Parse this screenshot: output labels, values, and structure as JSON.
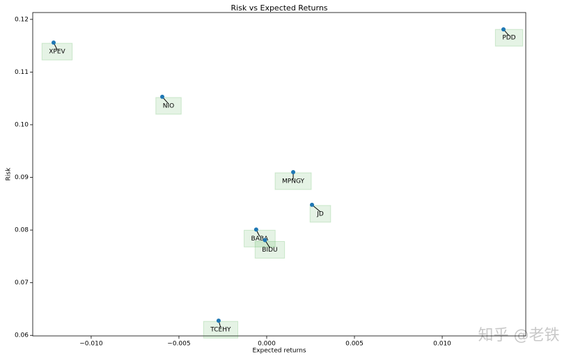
{
  "chart_data": {
    "type": "scatter",
    "title": "Risk vs Expected Returns",
    "x_label": "Expected returns",
    "y_label": "Risk",
    "labels": [
      "XPEV",
      "NIO",
      "PDD",
      "MPNGY",
      "JD",
      "BABA",
      "BIDU",
      "TCEHY"
    ],
    "x": [
      -0.01214,
      -0.00595,
      0.01349,
      0.00151,
      0.00258,
      -0.0006,
      -0.0001,
      -0.00274
    ],
    "values": [
      0.1156,
      0.1053,
      0.1181,
      0.091,
      0.0848,
      0.0801,
      0.0781,
      0.0628
    ],
    "color": "#1f77b4",
    "xlim": [
      -0.01333,
      0.01476
    ],
    "ylim": [
      0.0599,
      0.1213
    ],
    "xticks": [
      {
        "value": -0.01,
        "label": "−0.010"
      },
      {
        "value": -0.005,
        "label": "−0.005"
      },
      {
        "value": 0,
        "label": "0.000"
      },
      {
        "value": 0.005,
        "label": "0.005"
      },
      {
        "value": 0.01,
        "label": "0.010"
      }
    ],
    "yticks": [
      {
        "value": 0.06,
        "label": "0.06"
      },
      {
        "value": 0.07,
        "label": "0.07"
      },
      {
        "value": 0.08,
        "label": "0.08"
      },
      {
        "value": 0.09,
        "label": "0.09"
      },
      {
        "value": 0.1,
        "label": "0.10"
      },
      {
        "value": 0.11,
        "label": "0.11"
      },
      {
        "value": 0.12,
        "label": "0.12"
      }
    ],
    "grid": false,
    "watermark": "知乎 @老铁"
  }
}
